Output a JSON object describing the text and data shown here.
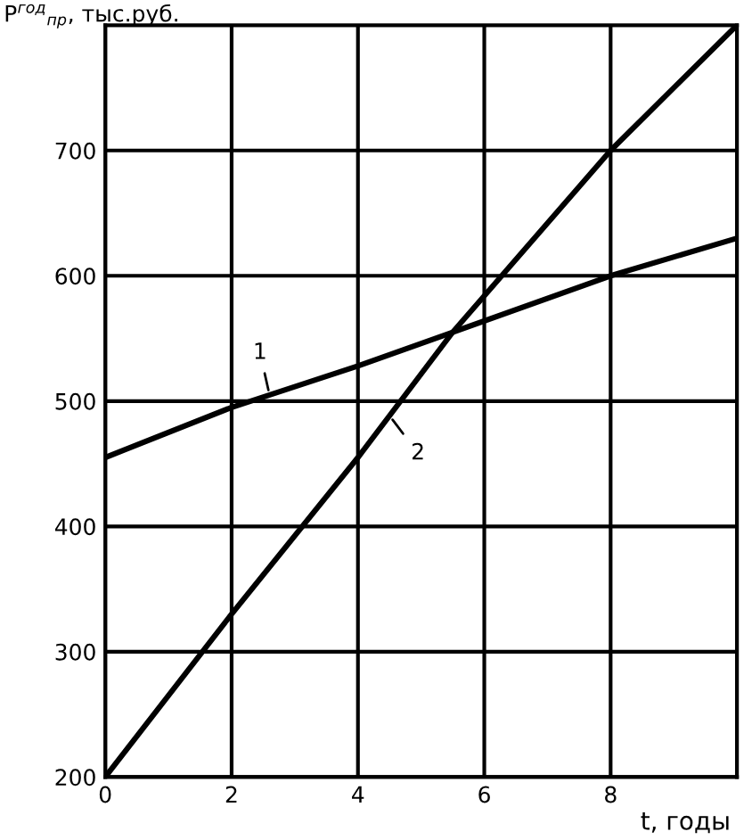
{
  "chart_data": {
    "type": "line",
    "ylabel": "P$^{год}$$_{пр}$, тыс.руб.",
    "xlabel": "t, годы",
    "xlim": [
      0,
      10
    ],
    "ylim": [
      200,
      800
    ],
    "xticks": [
      0,
      2,
      4,
      6,
      8,
      {
        "value": 10,
        "label": null
      }
    ],
    "yticks": [
      200,
      300,
      400,
      500,
      600,
      700,
      {
        "value": 800,
        "label": null
      }
    ],
    "grid": true,
    "marker": "none",
    "line_style": "solid",
    "series": [
      {
        "name": "1",
        "color": "#000000",
        "x": [
          0,
          2,
          4,
          5.5,
          8,
          10
        ],
        "values": [
          455,
          495,
          528,
          555,
          600,
          630
        ]
      },
      {
        "name": "2",
        "color": "#000000",
        "x": [
          0,
          2,
          4,
          5.5,
          8,
          10
        ],
        "values": [
          200,
          330,
          455,
          555,
          700,
          800
        ]
      }
    ]
  }
}
